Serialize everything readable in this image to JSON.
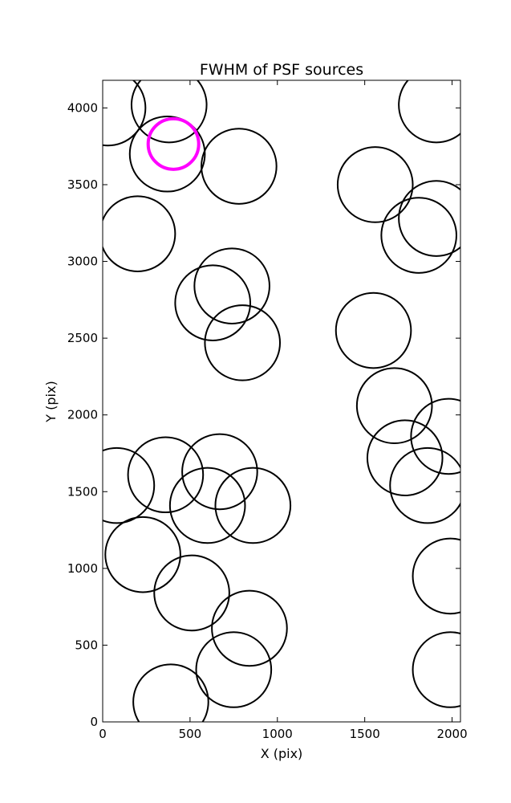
{
  "chart_data": {
    "type": "scatter",
    "title": "FWHM of PSF sources",
    "xlabel": "X (pix)",
    "ylabel": "Y (pix)",
    "xlim": [
      0,
      2048
    ],
    "ylim": [
      0,
      4180
    ],
    "xticks": [
      "0",
      "500",
      "1000",
      "1500",
      "2000"
    ],
    "yticks": [
      "0",
      "500",
      "1000",
      "1500",
      "2000",
      "2500",
      "3000",
      "3500",
      "4000"
    ],
    "grid": false,
    "marker": "open-circle",
    "colors": {
      "sources": "#000000",
      "highlight": "#ff00ff"
    },
    "sources": [
      {
        "x": 30,
        "y": 4000,
        "r": 1.04
      },
      {
        "x": 380,
        "y": 4020,
        "r": 1.04
      },
      {
        "x": 370,
        "y": 3700,
        "r": 1.04
      },
      {
        "x": 780,
        "y": 3620,
        "r": 1.04
      },
      {
        "x": 1560,
        "y": 3500,
        "r": 1.04
      },
      {
        "x": 1910,
        "y": 4020,
        "r": 1.04
      },
      {
        "x": 1910,
        "y": 3280,
        "r": 1.04
      },
      {
        "x": 1810,
        "y": 3170,
        "r": 1.04
      },
      {
        "x": 200,
        "y": 3180,
        "r": 1.04
      },
      {
        "x": 740,
        "y": 2840,
        "r": 1.04
      },
      {
        "x": 630,
        "y": 2730,
        "r": 1.04
      },
      {
        "x": 800,
        "y": 2470,
        "r": 1.04
      },
      {
        "x": 1550,
        "y": 2550,
        "r": 1.04
      },
      {
        "x": 1670,
        "y": 2060,
        "r": 1.04
      },
      {
        "x": 1980,
        "y": 1860,
        "r": 1.04
      },
      {
        "x": 1730,
        "y": 1720,
        "r": 1.04
      },
      {
        "x": 1860,
        "y": 1540,
        "r": 1.04
      },
      {
        "x": 80,
        "y": 1540,
        "r": 1.04
      },
      {
        "x": 360,
        "y": 1610,
        "r": 1.04
      },
      {
        "x": 670,
        "y": 1630,
        "r": 1.04
      },
      {
        "x": 600,
        "y": 1410,
        "r": 1.04
      },
      {
        "x": 860,
        "y": 1410,
        "r": 1.04
      },
      {
        "x": 230,
        "y": 1090,
        "r": 1.04
      },
      {
        "x": 510,
        "y": 840,
        "r": 1.04
      },
      {
        "x": 1990,
        "y": 950,
        "r": 1.04
      },
      {
        "x": 840,
        "y": 610,
        "r": 1.04
      },
      {
        "x": 750,
        "y": 340,
        "r": 1.04
      },
      {
        "x": 390,
        "y": 130,
        "r": 1.04
      },
      {
        "x": 1990,
        "y": 340,
        "r": 1.04
      }
    ],
    "highlight": {
      "x": 405,
      "y": 3765,
      "r": 0.7
    }
  }
}
